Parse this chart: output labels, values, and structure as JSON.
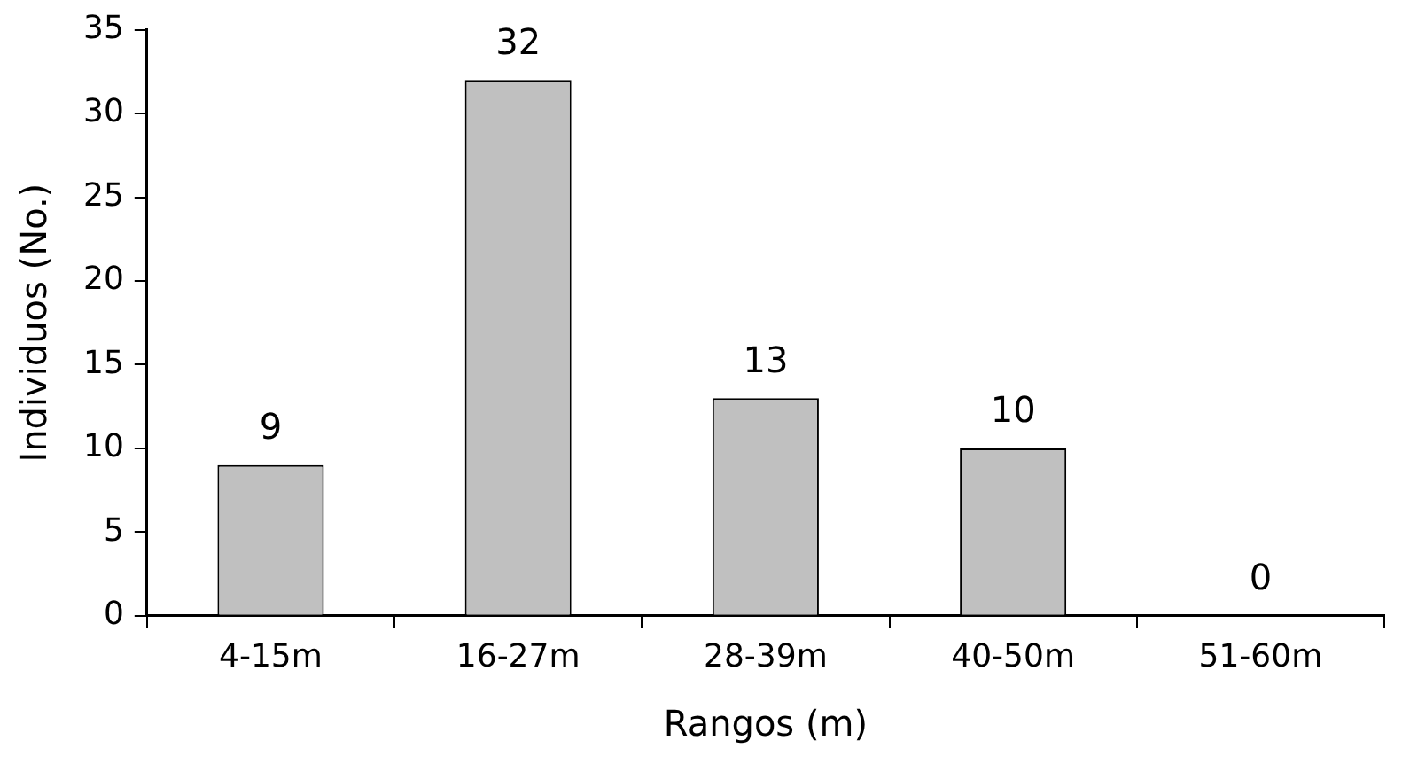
{
  "chart_data": {
    "type": "bar",
    "xlabel": "Rangos (m)",
    "ylabel": "Individuos (No.)",
    "categories": [
      "4-15m",
      "16-27m",
      "28-39m",
      "40-50m",
      "51-60m"
    ],
    "values": [
      9,
      32,
      13,
      10,
      0
    ],
    "color": "#c0c0c0",
    "ylim": [
      0,
      35
    ],
    "yticks": [
      0,
      5,
      10,
      15,
      20,
      25,
      30,
      35
    ],
    "grid": false,
    "legend": false,
    "data_labels": true
  }
}
